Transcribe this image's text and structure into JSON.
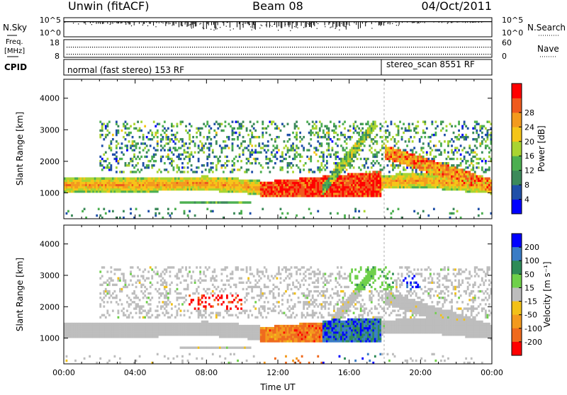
{
  "header": {
    "station": "Unwin (fitACF)",
    "beam": "Beam 08",
    "date": "04/Oct/2011"
  },
  "colors": {
    "power": [
      "#0000ff",
      "#1f4fa8",
      "#3c8a5a",
      "#4caf50",
      "#a9d431",
      "#f5c518",
      "#f39a1e",
      "#ef5a1e",
      "#ff0000"
    ],
    "velocity": [
      "#0000ff",
      "#3a7cc6",
      "#2e8b57",
      "#6fd04a",
      "#bdbdbd",
      "#f2c118",
      "#f39a1e",
      "#ef6a1e",
      "#ff0000"
    ],
    "ground_scatter": "#bdbdbd"
  },
  "chart_data": [
    {
      "type": "line",
      "name": "noise-panel",
      "left_labels": [
        "N.Sky",
        "Freq.",
        "[MHz]",
        "CPID"
      ],
      "right_labels": [
        "N.Search",
        "Nave"
      ],
      "noise_ticks_left": [
        "10^5",
        "10^0"
      ],
      "noise_ticks_right": [
        "10^5",
        "10^0"
      ],
      "freq_ticks": [
        "18",
        "8"
      ],
      "nave_ticks": [
        "60",
        "0"
      ],
      "noise_level_log": 4.2,
      "noise_spread": [
        [
          0,
          0.3
        ],
        [
          6,
          1.4
        ],
        [
          8,
          2.2
        ],
        [
          10,
          2.4
        ],
        [
          12,
          2.3
        ],
        [
          14,
          2.1
        ],
        [
          16,
          2.6
        ],
        [
          17.8,
          1.2
        ],
        [
          20,
          0.5
        ],
        [
          24,
          0.3
        ]
      ],
      "cpid": [
        {
          "label": "normal (fast stereo) 153 RF",
          "start": 0
        },
        {
          "label": "stereo_scan 8551 RF",
          "start": 17.8
        }
      ]
    },
    {
      "type": "heatmap",
      "name": "power",
      "ylabel": "Slant Range [km]",
      "yticks": [
        "1000",
        "2000",
        "3000",
        "4000"
      ],
      "ylim": [
        180,
        4600
      ],
      "xlim": [
        0,
        24
      ],
      "colorbar_label": "Power [dB]",
      "colorbar_ticks": [
        "4",
        "8",
        "12",
        "16",
        "20",
        "24",
        "28"
      ],
      "colorbar_range": [
        0,
        30
      ]
    },
    {
      "type": "heatmap",
      "name": "velocity",
      "ylabel": "Slant Range [km]",
      "yticks": [
        "1000",
        "2000",
        "3000",
        "4000"
      ],
      "ylim": [
        180,
        4600
      ],
      "xlim": [
        0,
        24
      ],
      "xlabel": "Time UT",
      "xticks": [
        "00:00",
        "04:00",
        "08:00",
        "12:00",
        "16:00",
        "20:00",
        "00:00"
      ],
      "colorbar_label": "Velocity [m s⁻¹]",
      "colorbar_ticks": [
        "200",
        "100",
        "50",
        "15",
        "-15",
        "-50",
        "-100",
        "-200"
      ],
      "colorbar_range": [
        -250,
        250
      ]
    }
  ]
}
